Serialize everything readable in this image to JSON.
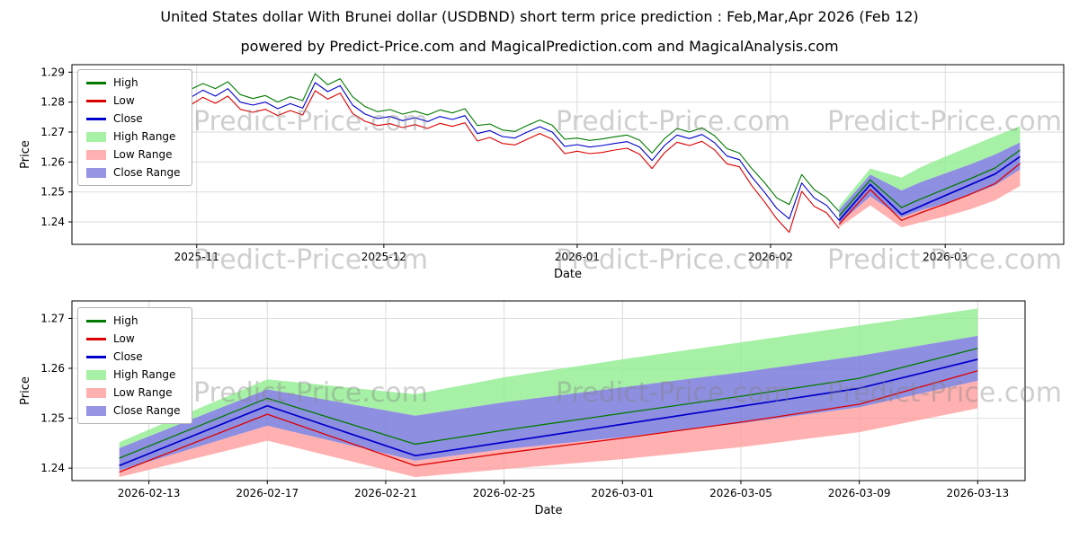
{
  "header": {
    "title": "United States dollar With Brunei dollar (USDBND) short term price prediction : Feb,Mar,Apr 2026 (Feb 12)",
    "subtitle": "powered by Predict-Price.com and MagicalPrediction.com and MagicalAnalysis.com"
  },
  "watermark": {
    "text": "Predict-Price.com",
    "color": "rgba(128,128,128,0.38)"
  },
  "colors": {
    "high": "#007a00",
    "low": "#dd0000",
    "close": "#0000cc",
    "high_range": "#90ee90",
    "low_range": "#ff9e9e",
    "close_range": "#7b7bdc",
    "grid": "#d9d9d9",
    "spine": "#000000"
  },
  "legend": [
    {
      "label": "High",
      "type": "line",
      "color": "#007a00"
    },
    {
      "label": "Low",
      "type": "line",
      "color": "#dd0000"
    },
    {
      "label": "Close",
      "type": "line",
      "color": "#0000cc"
    },
    {
      "label": "High Range",
      "type": "patch",
      "color": "#90ee90"
    },
    {
      "label": "Low Range",
      "type": "patch",
      "color": "#ff9e9e"
    },
    {
      "label": "Close Range",
      "type": "patch",
      "color": "#7b7bdc"
    }
  ],
  "chart_data": [
    {
      "type": "line",
      "xlabel": "Date",
      "ylabel": "Price",
      "grid": true,
      "legend_position": "upper left",
      "xlim": [
        -3,
        156
      ],
      "ylim": [
        1.2325,
        1.2925
      ],
      "yticks": [
        1.24,
        1.25,
        1.26,
        1.27,
        1.28,
        1.29
      ],
      "xticks": [
        {
          "x": 17,
          "label": "2025-11"
        },
        {
          "x": 47,
          "label": "2025-12"
        },
        {
          "x": 78,
          "label": "2026-01"
        },
        {
          "x": 109,
          "label": "2026-02"
        },
        {
          "x": 137,
          "label": "2026-03"
        }
      ],
      "x_unit": "days since 2025-10-15",
      "history": {
        "x": [
          0,
          2,
          4,
          6,
          8,
          10,
          12,
          14,
          16,
          18,
          20,
          22,
          24,
          26,
          28,
          30,
          32,
          34,
          36,
          38,
          40,
          42,
          44,
          46,
          48,
          50,
          52,
          54,
          56,
          58,
          60,
          62,
          64,
          66,
          68,
          70,
          72,
          74,
          76,
          78,
          80,
          82,
          84,
          86,
          88,
          90,
          92,
          94,
          96,
          98,
          100,
          102,
          104,
          106,
          108,
          110,
          112,
          114,
          116,
          118,
          120
        ],
        "high": [
          1.2768,
          1.2772,
          1.2765,
          1.277,
          1.2772,
          1.2795,
          1.2825,
          1.281,
          1.2842,
          1.2862,
          1.2845,
          1.2868,
          1.2825,
          1.2812,
          1.2822,
          1.28,
          1.2818,
          1.2805,
          1.2895,
          1.2858,
          1.2878,
          1.2818,
          1.2785,
          1.2768,
          1.2775,
          1.276,
          1.277,
          1.2757,
          1.2774,
          1.2764,
          1.2778,
          1.2722,
          1.2727,
          1.2707,
          1.2702,
          1.2722,
          1.274,
          1.2723,
          1.2676,
          1.268,
          1.2672,
          1.2677,
          1.2684,
          1.269,
          1.2673,
          1.263,
          1.2678,
          1.2712,
          1.27,
          1.2714,
          1.2688,
          1.2645,
          1.263,
          1.2578,
          1.2532,
          1.248,
          1.2458,
          1.2558,
          1.2508,
          1.248,
          1.2435
        ],
        "low": [
          1.2722,
          1.2728,
          1.272,
          1.2726,
          1.2728,
          1.2748,
          1.2775,
          1.2762,
          1.279,
          1.2816,
          1.2796,
          1.282,
          1.2776,
          1.2766,
          1.2776,
          1.2755,
          1.2772,
          1.2757,
          1.2838,
          1.281,
          1.283,
          1.2762,
          1.2736,
          1.2722,
          1.2728,
          1.2715,
          1.2725,
          1.2712,
          1.2729,
          1.2719,
          1.2731,
          1.267,
          1.2682,
          1.2662,
          1.2657,
          1.2676,
          1.2695,
          1.2676,
          1.2628,
          1.2636,
          1.2628,
          1.2632,
          1.264,
          1.2646,
          1.2626,
          1.2578,
          1.2631,
          1.2666,
          1.2655,
          1.2669,
          1.2641,
          1.2594,
          1.2584,
          1.2521,
          1.2468,
          1.241,
          1.2365,
          1.2502,
          1.2452,
          1.243,
          1.2378
        ],
        "close": [
          1.2745,
          1.275,
          1.2742,
          1.2748,
          1.275,
          1.277,
          1.28,
          1.2785,
          1.2815,
          1.284,
          1.282,
          1.2845,
          1.28,
          1.279,
          1.28,
          1.2778,
          1.2795,
          1.278,
          1.2865,
          1.2835,
          1.2855,
          1.279,
          1.276,
          1.2745,
          1.2752,
          1.2738,
          1.2748,
          1.2735,
          1.2752,
          1.2742,
          1.2755,
          1.2695,
          1.2705,
          1.2685,
          1.268,
          1.27,
          1.2718,
          1.27,
          1.2652,
          1.2658,
          1.265,
          1.2655,
          1.2662,
          1.2668,
          1.265,
          1.2605,
          1.2655,
          1.269,
          1.2678,
          1.2692,
          1.2665,
          1.262,
          1.2608,
          1.255,
          1.25,
          1.2445,
          1.241,
          1.253,
          1.248,
          1.2455,
          1.2405
        ]
      },
      "prediction": {
        "x": [
          120,
          125,
          130,
          133,
          137,
          141,
          145,
          149
        ],
        "dates": [
          "2026-02-12",
          "2026-02-17",
          "2026-02-22",
          "2026-02-25",
          "2026-03-01",
          "2026-03-05",
          "2026-03-09",
          "2026-03-13"
        ],
        "high": [
          1.242,
          1.254,
          1.2448,
          1.2476,
          1.251,
          1.2544,
          1.258,
          1.264
        ],
        "low": [
          1.2392,
          1.2508,
          1.2405,
          1.243,
          1.246,
          1.2492,
          1.2528,
          1.2595
        ],
        "close": [
          1.2405,
          1.2525,
          1.2425,
          1.2452,
          1.2488,
          1.2524,
          1.256,
          1.2618
        ],
        "high_range_upper": [
          1.2452,
          1.2578,
          1.2548,
          1.2582,
          1.2618,
          1.2652,
          1.2686,
          1.272
        ],
        "low_range_lower": [
          1.2382,
          1.2455,
          1.2382,
          1.2398,
          1.2418,
          1.2442,
          1.2472,
          1.252
        ],
        "close_range_upper": [
          1.244,
          1.2558,
          1.2505,
          1.2532,
          1.2562,
          1.2592,
          1.2625,
          1.2665
        ],
        "close_range_lower": [
          1.2395,
          1.2485,
          1.2415,
          1.2438,
          1.2462,
          1.249,
          1.2522,
          1.2575
        ]
      }
    },
    {
      "type": "line",
      "xlabel": "Date",
      "ylabel": "Price",
      "grid": true,
      "legend_position": "upper left",
      "xlim": [
        -1.6,
        30.6
      ],
      "ylim": [
        1.2375,
        1.2735
      ],
      "yticks": [
        1.24,
        1.25,
        1.26,
        1.27
      ],
      "xticks": [
        {
          "x": 1,
          "label": "2026-02-13"
        },
        {
          "x": 5,
          "label": "2026-02-17"
        },
        {
          "x": 9,
          "label": "2026-02-21"
        },
        {
          "x": 13,
          "label": "2026-02-25"
        },
        {
          "x": 17,
          "label": "2026-03-01"
        },
        {
          "x": 21,
          "label": "2026-03-05"
        },
        {
          "x": 25,
          "label": "2026-03-09"
        },
        {
          "x": 29,
          "label": "2026-03-13"
        }
      ],
      "x_unit": "days since 2026-02-12",
      "prediction": {
        "x": [
          0,
          5,
          10,
          13,
          17,
          21,
          25,
          29
        ],
        "dates": [
          "2026-02-12",
          "2026-02-17",
          "2026-02-22",
          "2026-02-25",
          "2026-03-01",
          "2026-03-05",
          "2026-03-09",
          "2026-03-13"
        ],
        "high": [
          1.242,
          1.254,
          1.2448,
          1.2476,
          1.251,
          1.2544,
          1.258,
          1.264
        ],
        "low": [
          1.2392,
          1.2508,
          1.2405,
          1.243,
          1.246,
          1.2492,
          1.2528,
          1.2595
        ],
        "close": [
          1.2405,
          1.2525,
          1.2425,
          1.2452,
          1.2488,
          1.2524,
          1.256,
          1.2618
        ],
        "high_range_upper": [
          1.2452,
          1.2578,
          1.2548,
          1.2582,
          1.2618,
          1.2652,
          1.2686,
          1.272
        ],
        "low_range_lower": [
          1.2382,
          1.2455,
          1.2382,
          1.2398,
          1.2418,
          1.2442,
          1.2472,
          1.252
        ],
        "close_range_upper": [
          1.244,
          1.2558,
          1.2505,
          1.2532,
          1.2562,
          1.2592,
          1.2625,
          1.2665
        ],
        "close_range_lower": [
          1.2395,
          1.2485,
          1.2415,
          1.2438,
          1.2462,
          1.249,
          1.2522,
          1.2575
        ]
      }
    }
  ]
}
